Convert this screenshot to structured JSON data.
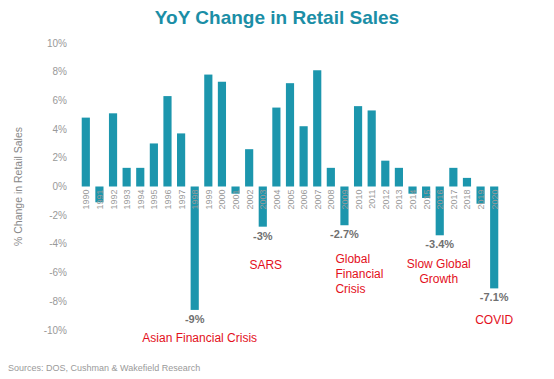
{
  "chart_data": {
    "type": "bar",
    "title": "YoY Change in Retail Sales",
    "y_label": "% Change in Retail Sales",
    "source": "Sources: DOS, Cushman & Wakefield Research",
    "categories": [
      "1990",
      "1991",
      "1992",
      "1993",
      "1994",
      "1995",
      "1996",
      "1997",
      "1998",
      "1999",
      "2000",
      "2001",
      "2002",
      "2003",
      "2004",
      "2005",
      "2006",
      "2007",
      "2008",
      "2009",
      "2010",
      "2011",
      "2012",
      "2013",
      "2014",
      "2015",
      "2016",
      "2017",
      "2018",
      "2019",
      "2020"
    ],
    "values": [
      4.8,
      -1.1,
      5.1,
      1.3,
      1.3,
      3.0,
      6.3,
      3.7,
      -8.6,
      7.8,
      7.3,
      -0.5,
      2.6,
      -2.8,
      5.5,
      7.2,
      4.2,
      8.1,
      1.3,
      -2.7,
      5.6,
      5.3,
      1.8,
      1.3,
      -0.5,
      -0.8,
      -3.4,
      1.3,
      0.6,
      -1.2,
      -7.1
    ],
    "value_labels": [
      null,
      null,
      null,
      null,
      null,
      null,
      null,
      null,
      "-9%",
      null,
      null,
      null,
      null,
      "-3%",
      null,
      null,
      null,
      null,
      null,
      "-2.7%",
      null,
      null,
      null,
      null,
      null,
      null,
      "-3.4%",
      null,
      null,
      null,
      "-7.1%"
    ],
    "data_labels": true,
    "color": "#1c96ad",
    "ylim": [
      -10,
      10
    ],
    "yticks": [
      {
        "value": -10,
        "label": "-10%"
      },
      {
        "value": -8,
        "label": "-8%"
      },
      {
        "value": -6,
        "label": "-6%"
      },
      {
        "value": -4,
        "label": "-4%"
      },
      {
        "value": -2,
        "label": "-2%"
      },
      {
        "value": 0,
        "label": "0%"
      },
      {
        "value": 2,
        "label": "2%"
      },
      {
        "value": 4,
        "label": "4%"
      },
      {
        "value": 6,
        "label": "6%"
      },
      {
        "value": 8,
        "label": "8%"
      },
      {
        "value": 10,
        "label": "10%"
      }
    ],
    "grid": false,
    "annotations": [
      {
        "category": "1998",
        "lines": [
          "Asian Financial Crisis"
        ]
      },
      {
        "category": "2003",
        "lines": [
          "SARS"
        ]
      },
      {
        "category": "2009",
        "lines": [
          "Global",
          "Financial",
          "Crisis"
        ]
      },
      {
        "category": "2016",
        "lines": [
          "Slow Global",
          "Growth"
        ]
      },
      {
        "category": "2020",
        "lines": [
          "COVID"
        ]
      }
    ]
  }
}
